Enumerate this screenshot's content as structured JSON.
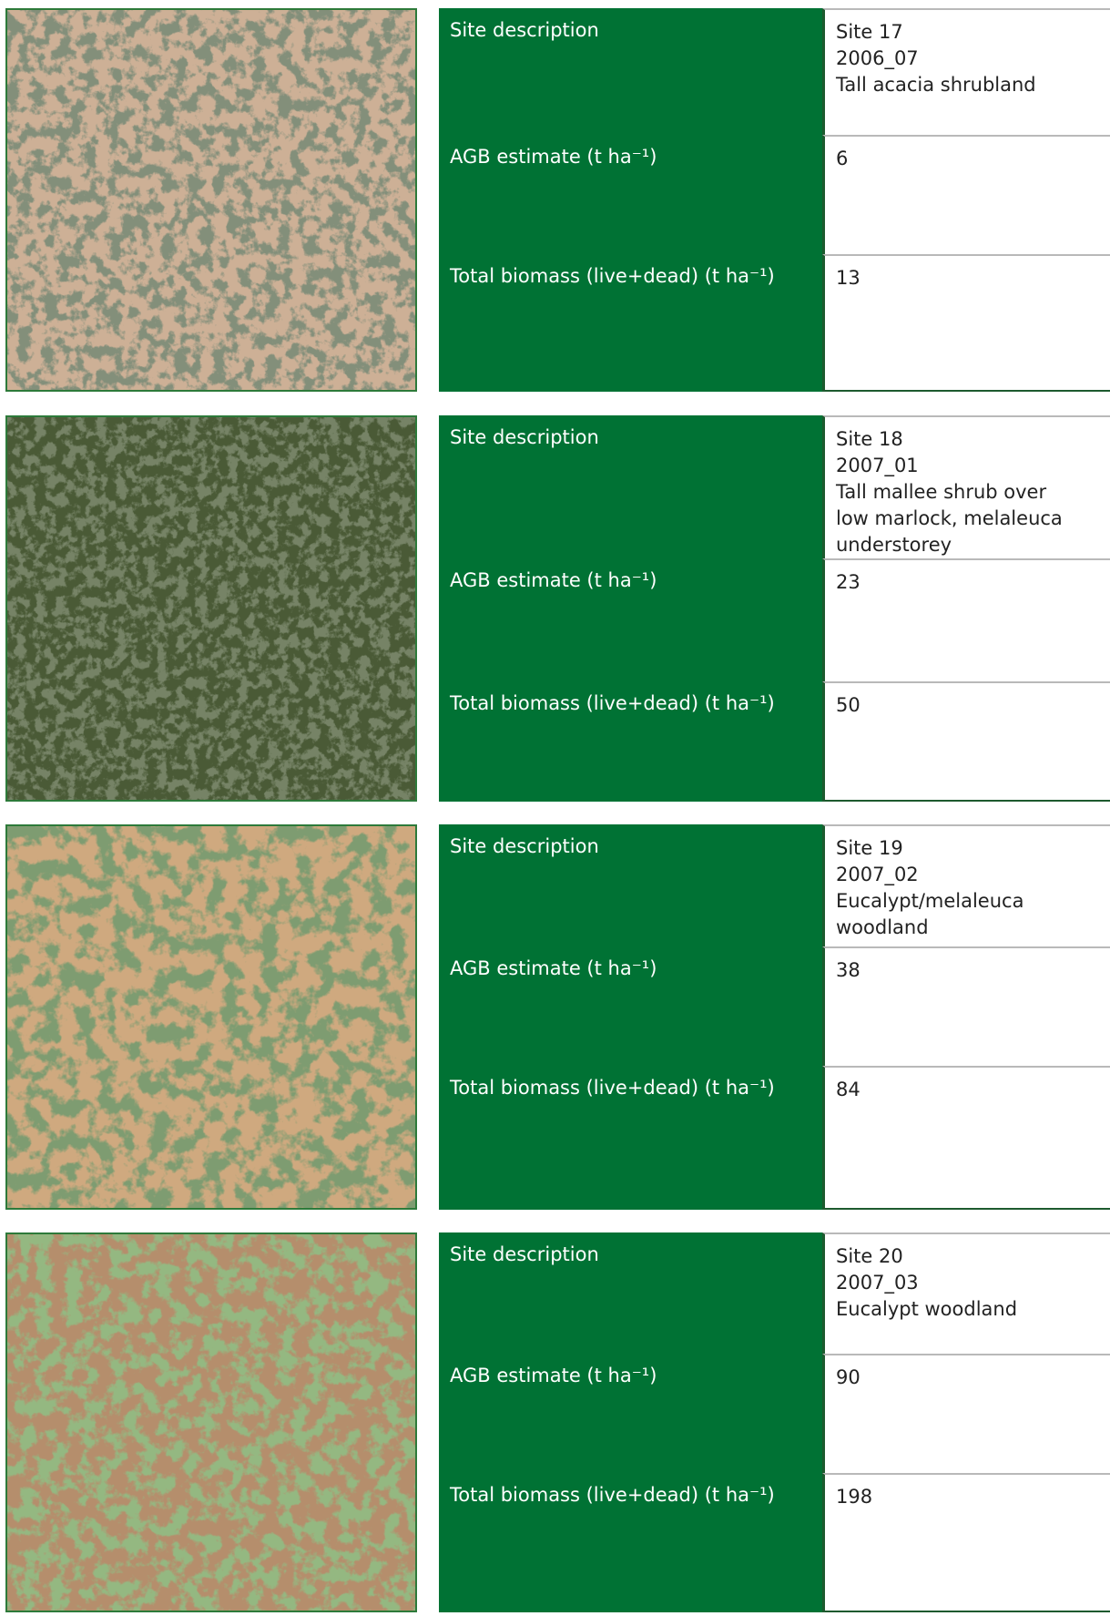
{
  "blocks": [
    {
      "rows": [
        {
          "label": "Site description",
          "value": [
            "Site 17",
            "2006_07",
            "Tall acacia shrubland"
          ]
        },
        {
          "label": "AGB estimate (t ha⁻¹)",
          "value": [
            "6"
          ]
        },
        {
          "label": "Total biomass (live+dead) (t ha⁻¹)",
          "value": [
            "13"
          ]
        }
      ]
    },
    {
      "rows": [
        {
          "label": "Site description",
          "value": [
            "Site 18",
            "2007_01",
            "Tall mallee shrub over",
            "low marlock, melaleuca",
            "understorey"
          ]
        },
        {
          "label": "AGB estimate (t ha⁻¹)",
          "value": [
            "23"
          ]
        },
        {
          "label": "Total biomass (live+dead) (t ha⁻¹)",
          "value": [
            "50"
          ]
        }
      ]
    },
    {
      "rows": [
        {
          "label": "Site description",
          "value": [
            "Site 19",
            "2007_02",
            "Eucalypt/melaleuca",
            "woodland"
          ]
        },
        {
          "label": "AGB estimate (t ha⁻¹)",
          "value": [
            "38"
          ]
        },
        {
          "label": "Total biomass (live+dead) (t ha⁻¹)",
          "value": [
            "84"
          ]
        }
      ]
    },
    {
      "rows": [
        {
          "label": "Site description",
          "value": [
            "Site 20",
            "2007_03",
            "Eucalypt woodland"
          ]
        },
        {
          "label": "AGB estimate (t ha⁻¹)",
          "value": [
            "90"
          ]
        },
        {
          "label": "Total biomass (live+dead) (t ha⁻¹)",
          "value": [
            "198"
          ]
        }
      ]
    }
  ]
}
